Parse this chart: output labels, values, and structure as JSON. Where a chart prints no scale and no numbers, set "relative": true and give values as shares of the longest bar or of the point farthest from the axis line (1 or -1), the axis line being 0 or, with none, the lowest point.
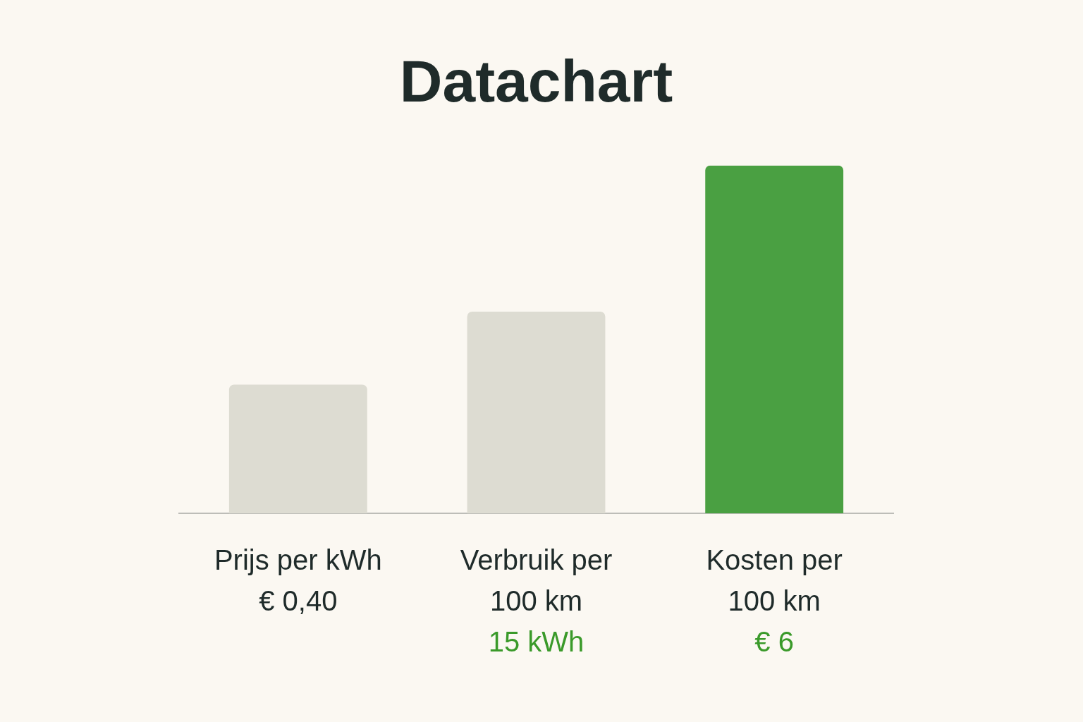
{
  "chart_data": {
    "type": "bar",
    "title": "Datachart",
    "categories": [
      "Prijs per kWh € 0,40",
      "Verbruik per 100 km",
      "Kosten per 100 km"
    ],
    "values": [
      0.37,
      0.58,
      1
    ],
    "colors": [
      "#dddcd2",
      "#dddcd2",
      "#4aa042"
    ],
    "annotations": [
      "15 kWh",
      "€ 6"
    ],
    "relative": true,
    "grid": false,
    "legend": false
  }
}
